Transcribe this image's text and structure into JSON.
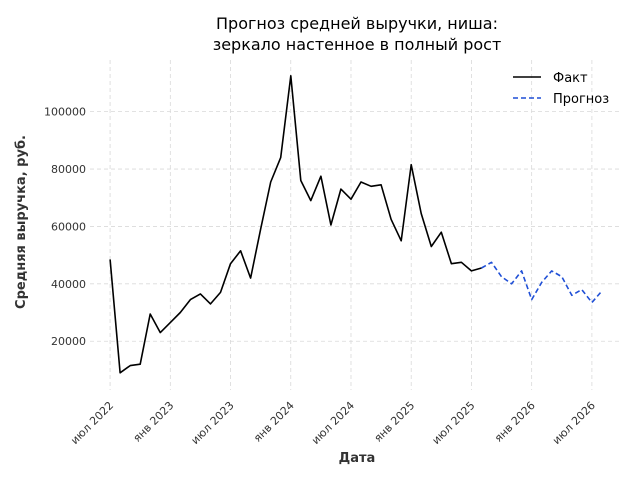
{
  "chart_data": {
    "type": "line",
    "title": [
      "Прогноз средней выручки, ниша:",
      "зеркало настенное в полный рост"
    ],
    "xlabel": "Дата",
    "ylabel": "Средняя выручка, руб.",
    "x_ticks": [
      {
        "label": "июл 2022",
        "date": "2022-07"
      },
      {
        "label": "янв 2023",
        "date": "2023-01"
      },
      {
        "label": "июл 2023",
        "date": "2023-07"
      },
      {
        "label": "янв 2024",
        "date": "2024-01"
      },
      {
        "label": "июл 2024",
        "date": "2024-07"
      },
      {
        "label": "янв 2025",
        "date": "2025-01"
      },
      {
        "label": "июл 2025",
        "date": "2025-07"
      },
      {
        "label": "янв 2026",
        "date": "2026-01"
      },
      {
        "label": "июл 2026",
        "date": "2026-07"
      }
    ],
    "y_ticks": [
      20000,
      40000,
      60000,
      80000,
      100000
    ],
    "xlim": [
      "2022-05",
      "2026-10"
    ],
    "ylim": [
      3000,
      118000
    ],
    "grid": true,
    "legend_position": "top-right",
    "series": [
      {
        "name": "Факт",
        "color": "#000000",
        "dash": "solid",
        "x": [
          "2022-07",
          "2022-08",
          "2022-09",
          "2022-10",
          "2022-11",
          "2022-12",
          "2023-01",
          "2023-02",
          "2023-03",
          "2023-04",
          "2023-05",
          "2023-06",
          "2023-07",
          "2023-08",
          "2023-09",
          "2023-10",
          "2023-11",
          "2023-12",
          "2024-01",
          "2024-02",
          "2024-03",
          "2024-04",
          "2024-05",
          "2024-06",
          "2024-07",
          "2024-08",
          "2024-09",
          "2024-10",
          "2024-11",
          "2024-12",
          "2025-01",
          "2025-02",
          "2025-03",
          "2025-04",
          "2025-05",
          "2025-06",
          "2025-07",
          "2025-08"
        ],
        "values": [
          48500,
          9000,
          11500,
          12000,
          29500,
          23000,
          26500,
          30000,
          34500,
          36500,
          33000,
          37000,
          47000,
          51500,
          42000,
          59000,
          75500,
          84000,
          112500,
          76000,
          69000,
          77500,
          60500,
          73000,
          69500,
          75500,
          74000,
          74500,
          62500,
          55000,
          81500,
          64500,
          53000,
          58000,
          47000,
          47500,
          44500,
          45500
        ]
      },
      {
        "name": "Прогноз",
        "color": "#1f4fd6",
        "dash": "dashed",
        "x": [
          "2025-08",
          "2025-09",
          "2025-10",
          "2025-11",
          "2025-12",
          "2026-01",
          "2026-02",
          "2026-03",
          "2026-04",
          "2026-05",
          "2026-06",
          "2026-07",
          "2026-08"
        ],
        "values": [
          45500,
          47500,
          42500,
          40000,
          44500,
          34500,
          40500,
          44500,
          42500,
          36000,
          38000,
          33500,
          37500
        ]
      }
    ]
  }
}
